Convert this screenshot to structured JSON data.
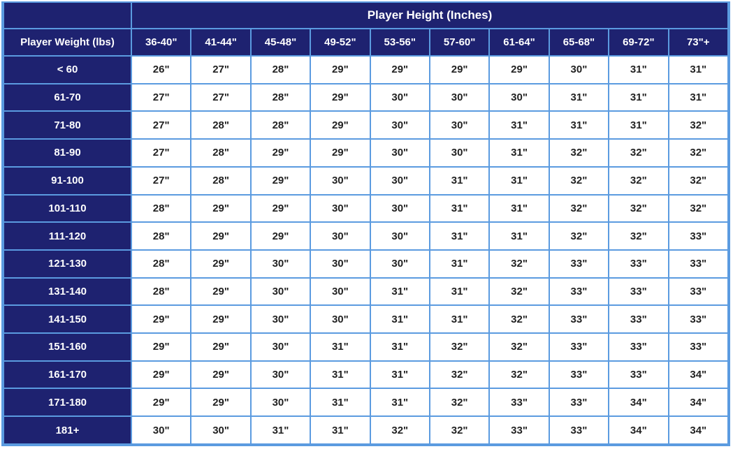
{
  "colors": {
    "header_bg": "#1e2270",
    "grid": "#5b9be0",
    "cell_bg": "#ffffff",
    "header_text": "#ffffff",
    "cell_text": "#222222"
  },
  "table": {
    "title": "Player Height (Inches)",
    "row_header_label": "Player Weight (lbs)",
    "columns": [
      "36-40\"",
      "41-44\"",
      "45-48\"",
      "49-52\"",
      "53-56\"",
      "57-60\"",
      "61-64\"",
      "65-68\"",
      "69-72\"",
      "73\"+"
    ],
    "rows": [
      {
        "label": "< 60",
        "values": [
          "26\"",
          "27\"",
          "28\"",
          "29\"",
          "29\"",
          "29\"",
          "29\"",
          "30\"",
          "31\"",
          "31\""
        ]
      },
      {
        "label": "61-70",
        "values": [
          "27\"",
          "27\"",
          "28\"",
          "29\"",
          "30\"",
          "30\"",
          "30\"",
          "31\"",
          "31\"",
          "31\""
        ]
      },
      {
        "label": "71-80",
        "values": [
          "27\"",
          "28\"",
          "28\"",
          "29\"",
          "30\"",
          "30\"",
          "31\"",
          "31\"",
          "31\"",
          "32\""
        ]
      },
      {
        "label": "81-90",
        "values": [
          "27\"",
          "28\"",
          "29\"",
          "29\"",
          "30\"",
          "30\"",
          "31\"",
          "32\"",
          "32\"",
          "32\""
        ]
      },
      {
        "label": "91-100",
        "values": [
          "27\"",
          "28\"",
          "29\"",
          "30\"",
          "30\"",
          "31\"",
          "31\"",
          "32\"",
          "32\"",
          "32\""
        ]
      },
      {
        "label": "101-110",
        "values": [
          "28\"",
          "29\"",
          "29\"",
          "30\"",
          "30\"",
          "31\"",
          "31\"",
          "32\"",
          "32\"",
          "32\""
        ]
      },
      {
        "label": "111-120",
        "values": [
          "28\"",
          "29\"",
          "29\"",
          "30\"",
          "30\"",
          "31\"",
          "31\"",
          "32\"",
          "32\"",
          "33\""
        ]
      },
      {
        "label": "121-130",
        "values": [
          "28\"",
          "29\"",
          "30\"",
          "30\"",
          "30\"",
          "31\"",
          "32\"",
          "33\"",
          "33\"",
          "33\""
        ]
      },
      {
        "label": "131-140",
        "values": [
          "28\"",
          "29\"",
          "30\"",
          "30\"",
          "31\"",
          "31\"",
          "32\"",
          "33\"",
          "33\"",
          "33\""
        ]
      },
      {
        "label": "141-150",
        "values": [
          "29\"",
          "29\"",
          "30\"",
          "30\"",
          "31\"",
          "31\"",
          "32\"",
          "33\"",
          "33\"",
          "33\""
        ]
      },
      {
        "label": "151-160",
        "values": [
          "29\"",
          "29\"",
          "30\"",
          "31\"",
          "31\"",
          "32\"",
          "32\"",
          "33\"",
          "33\"",
          "33\""
        ]
      },
      {
        "label": "161-170",
        "values": [
          "29\"",
          "29\"",
          "30\"",
          "31\"",
          "31\"",
          "32\"",
          "32\"",
          "33\"",
          "33\"",
          "34\""
        ]
      },
      {
        "label": "171-180",
        "values": [
          "29\"",
          "29\"",
          "30\"",
          "31\"",
          "31\"",
          "32\"",
          "33\"",
          "33\"",
          "34\"",
          "34\""
        ]
      },
      {
        "label": "181+",
        "values": [
          "30\"",
          "30\"",
          "31\"",
          "31\"",
          "32\"",
          "32\"",
          "33\"",
          "33\"",
          "34\"",
          "34\""
        ]
      }
    ]
  }
}
